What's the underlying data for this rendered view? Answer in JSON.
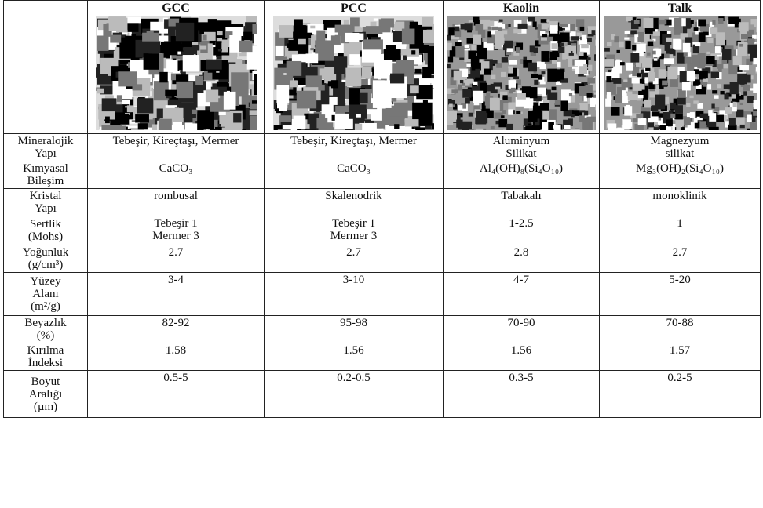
{
  "table": {
    "columns": [
      "GCC",
      "PCC",
      "Kaolin",
      "Talk"
    ],
    "rows": [
      {
        "label": [
          "Mineralojik",
          "Yapı"
        ],
        "cells": [
          [
            "Tebeşir, Kireçtaşı, Mermer"
          ],
          [
            "Tebeşir, Kireçtaşı, Mermer"
          ],
          [
            "Aluminyum",
            "Silikat"
          ],
          [
            "Magnezyum",
            "silikat"
          ]
        ]
      },
      {
        "label": [
          "Kımyasal",
          "Bileşim"
        ],
        "cells": [
          [
            "CaCO₃"
          ],
          [
            "CaCO₃"
          ],
          [
            "Al₄(OH)₈(Si₄O₁₀)"
          ],
          [
            "Mg₃(OH)₂(Si₄O₁₀)"
          ]
        ]
      },
      {
        "label": [
          "Kristal",
          "Yapı"
        ],
        "cells": [
          [
            "rombusal"
          ],
          [
            "Skalenodrik"
          ],
          [
            "Tabakalı"
          ],
          [
            "monoklinik"
          ]
        ]
      },
      {
        "label": [
          "Sertlik",
          "(Mohs)"
        ],
        "cells": [
          [
            "Tebeşir 1",
            "Mermer 3"
          ],
          [
            "Tebeşir 1",
            "Mermer 3"
          ],
          [
            "1-2.5"
          ],
          [
            "1"
          ]
        ]
      },
      {
        "label": [
          "Yoğunluk",
          "(g/cm³)"
        ],
        "cells": [
          [
            "2.7"
          ],
          [
            "2.7"
          ],
          [
            "2.8"
          ],
          [
            "2.7"
          ]
        ]
      },
      {
        "label": [
          "Yüzey",
          "Alanı",
          "(m²/g)"
        ],
        "cells": [
          [
            "3-4"
          ],
          [
            "3-10"
          ],
          [
            "4-7"
          ],
          [
            "5-20"
          ]
        ]
      },
      {
        "label": [
          "Beyazlık",
          "(%)"
        ],
        "cells": [
          [
            "82-92"
          ],
          [
            "95-98"
          ],
          [
            "70-90"
          ],
          [
            "70-88"
          ]
        ]
      },
      {
        "label": [
          "Kırılma",
          "İndeksi"
        ],
        "cells": [
          [
            "1.58"
          ],
          [
            "1.56"
          ],
          [
            "1.56"
          ],
          [
            "1.57"
          ]
        ]
      },
      {
        "label": [
          "Boyut",
          "Aralığı",
          "(µm)"
        ],
        "cells": [
          [
            "0.5-5"
          ],
          [
            "0.2-0.5"
          ],
          [
            "0.3-5"
          ],
          [
            "0.2-5"
          ]
        ]
      }
    ]
  }
}
